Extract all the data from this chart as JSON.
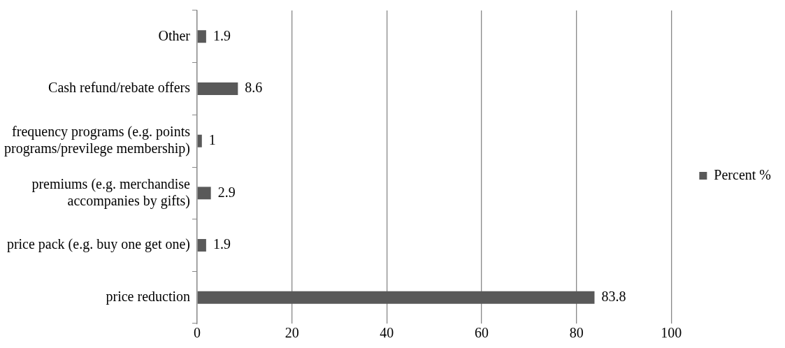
{
  "chart_data": {
    "type": "bar",
    "orientation": "horizontal",
    "categories": [
      "Other",
      "Cash refund/rebate offers",
      "frequency programs (e.g. points programs/previlege membership)",
      "premiums (e.g. merchandise accompanies by gifts)",
      "price pack (e.g. buy one get one)",
      "price reduction"
    ],
    "series": [
      {
        "name": "Percent %",
        "color": "#595959",
        "values": [
          1.9,
          8.6,
          1,
          2.9,
          1.9,
          83.8
        ]
      }
    ],
    "xlim": [
      0,
      100
    ],
    "xticks": [
      0,
      20,
      40,
      60,
      80,
      100
    ],
    "grid": "x",
    "legend": "right",
    "data_labels": true
  }
}
